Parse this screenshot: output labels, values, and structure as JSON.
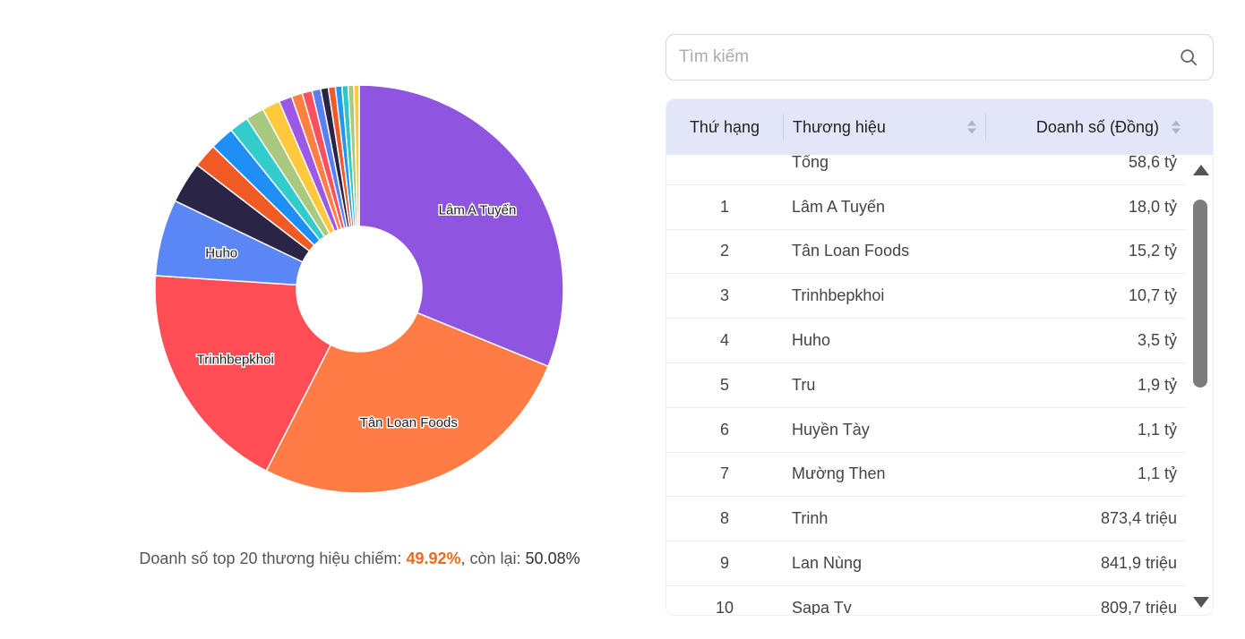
{
  "summary": {
    "prefix": "Doanh số top 20 thương hiệu chiếm: ",
    "highlight": "49.92%",
    "middle": ", còn lại: ",
    "rest": "50.08%"
  },
  "search": {
    "placeholder": "Tìm kiếm"
  },
  "table": {
    "headers": {
      "rank": "Thứ hạng",
      "brand": "Thương hiệu",
      "sales": "Doanh số (Đồng)"
    },
    "rows": [
      {
        "rank": "",
        "brand": "Tổng",
        "sales": "58,6 tỷ"
      },
      {
        "rank": "1",
        "brand": "Lâm A Tuyến",
        "sales": "18,0 tỷ"
      },
      {
        "rank": "2",
        "brand": "Tân Loan Foods",
        "sales": "15,2 tỷ"
      },
      {
        "rank": "3",
        "brand": "Trinhbepkhoi",
        "sales": "10,7 tỷ"
      },
      {
        "rank": "4",
        "brand": "Huho",
        "sales": "3,5 tỷ"
      },
      {
        "rank": "5",
        "brand": "Tru",
        "sales": "1,9 tỷ"
      },
      {
        "rank": "6",
        "brand": "Huyền Tày",
        "sales": "1,1 tỷ"
      },
      {
        "rank": "7",
        "brand": "Mường Then",
        "sales": "1,1 tỷ"
      },
      {
        "rank": "8",
        "brand": "Trinh",
        "sales": "873,4 triệu"
      },
      {
        "rank": "9",
        "brand": "Lan Nùng",
        "sales": "841,9 triệu"
      },
      {
        "rank": "10",
        "brand": "Sapa Tv",
        "sales": "809,7 triệu"
      }
    ]
  },
  "chart_data": {
    "type": "pie",
    "donut": true,
    "labels_shown": [
      "Lâm A Tuyến",
      "Tân Loan Foods",
      "Trinhbepkhoi",
      "Huho"
    ],
    "slices": [
      {
        "name": "Lâm A Tuyến",
        "value": 18.0,
        "color": "#8f55e0",
        "label": true
      },
      {
        "name": "Tân Loan Foods",
        "value": 15.2,
        "color": "#ff7d45",
        "label": true
      },
      {
        "name": "Trinhbepkhoi",
        "value": 10.7,
        "color": "#ff4d55",
        "label": true
      },
      {
        "name": "Huho",
        "value": 3.5,
        "color": "#5b86f5",
        "label": true
      },
      {
        "name": "Tru",
        "value": 1.9,
        "color": "#2a2446",
        "label": false
      },
      {
        "name": "Huyền Tày",
        "value": 1.1,
        "color": "#ef5a25",
        "label": false
      },
      {
        "name": "Mường Then",
        "value": 1.1,
        "color": "#1f8ef5",
        "label": false
      },
      {
        "name": "Trinh",
        "value": 0.873,
        "color": "#33cccc",
        "label": false
      },
      {
        "name": "Lan Nùng",
        "value": 0.842,
        "color": "#a9c880",
        "label": false
      },
      {
        "name": "Sapa Tv",
        "value": 0.81,
        "color": "#ffc83d",
        "label": false
      },
      {
        "name": "",
        "value": 0.6,
        "color": "#9b59e5",
        "label": false
      },
      {
        "name": "",
        "value": 0.5,
        "color": "#ff8040",
        "label": false
      },
      {
        "name": "",
        "value": 0.45,
        "color": "#ff5060",
        "label": false
      },
      {
        "name": "",
        "value": 0.4,
        "color": "#5b7ff0",
        "label": false
      },
      {
        "name": "",
        "value": 0.35,
        "color": "#2a2446",
        "label": false
      },
      {
        "name": "",
        "value": 0.32,
        "color": "#f05a28",
        "label": false
      },
      {
        "name": "",
        "value": 0.3,
        "color": "#2196f3",
        "label": false
      },
      {
        "name": "",
        "value": 0.28,
        "color": "#2ec7c7",
        "label": false
      },
      {
        "name": "",
        "value": 0.26,
        "color": "#a9c880",
        "label": false
      },
      {
        "name": "",
        "value": 0.24,
        "color": "#ffc83d",
        "label": false
      }
    ]
  }
}
